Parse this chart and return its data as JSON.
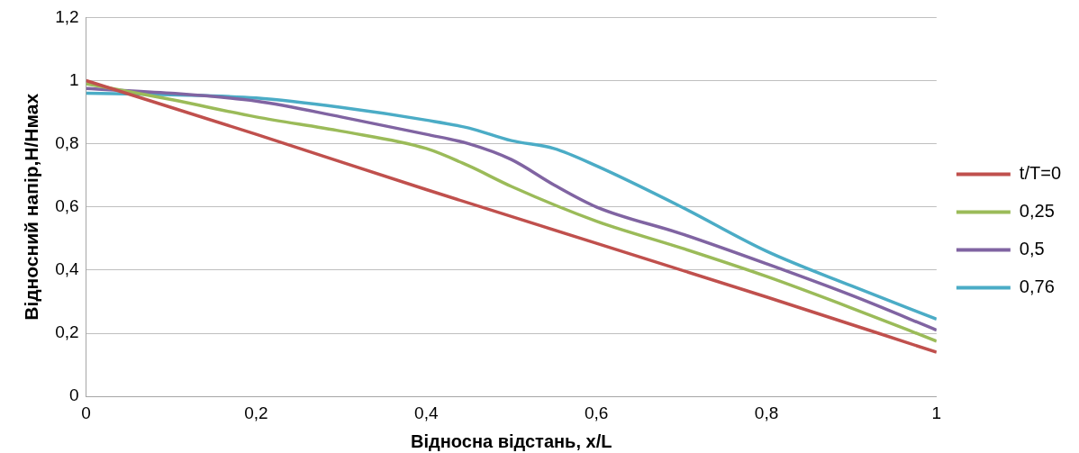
{
  "chart_data": {
    "type": "line",
    "xlabel": "Відносна відстань, x/L",
    "ylabel": "Відносний напір,Н/Нмах",
    "xlim": [
      0,
      1
    ],
    "xticks": [
      0,
      {
        "value": 0.2,
        "label": "0,2"
      },
      {
        "value": 0.4,
        "label": "0,4"
      },
      {
        "value": 0.6,
        "label": "0,6"
      },
      {
        "value": 0.8,
        "label": "0,8"
      },
      1
    ],
    "ylim": [
      0,
      1.2
    ],
    "yticks": [
      0,
      {
        "value": 0.2,
        "label": "0,2"
      },
      {
        "value": 0.4,
        "label": "0,4"
      },
      {
        "value": 0.6,
        "label": "0,6"
      },
      {
        "value": 0.8,
        "label": "0,8"
      },
      1,
      {
        "value": 1.2,
        "label": "1,2"
      }
    ],
    "grid": "y",
    "legend": "right",
    "marker": "none",
    "series": [
      {
        "name": "t/T=0",
        "color": "#c0504d",
        "x": [
          0,
          0.2,
          0.4,
          0.6,
          0.8,
          1
        ],
        "values": [
          1,
          0.83,
          0.655,
          0.485,
          0.315,
          0.14
        ]
      },
      {
        "name": "0,25",
        "color": "#9bbb59",
        "x": [
          0,
          0.1,
          0.2,
          0.3,
          0.4,
          0.45,
          0.5,
          0.6,
          0.7,
          0.8,
          0.9,
          1
        ],
        "values": [
          0.99,
          0.94,
          0.885,
          0.84,
          0.785,
          0.73,
          0.665,
          0.555,
          0.47,
          0.38,
          0.28,
          0.175
        ]
      },
      {
        "name": "0,5",
        "color": "#8064a2",
        "x": [
          0,
          0.1,
          0.2,
          0.3,
          0.4,
          0.45,
          0.5,
          0.55,
          0.6,
          0.7,
          0.8,
          0.9,
          1
        ],
        "values": [
          0.975,
          0.96,
          0.935,
          0.885,
          0.83,
          0.8,
          0.75,
          0.67,
          0.6,
          0.515,
          0.42,
          0.32,
          0.21
        ]
      },
      {
        "name": "0,76",
        "color": "#4bacc6",
        "x": [
          0,
          0.1,
          0.2,
          0.3,
          0.4,
          0.45,
          0.5,
          0.55,
          0.6,
          0.7,
          0.8,
          0.9,
          1
        ],
        "values": [
          0.96,
          0.955,
          0.945,
          0.915,
          0.875,
          0.85,
          0.81,
          0.785,
          0.73,
          0.6,
          0.46,
          0.35,
          0.245
        ]
      }
    ]
  }
}
